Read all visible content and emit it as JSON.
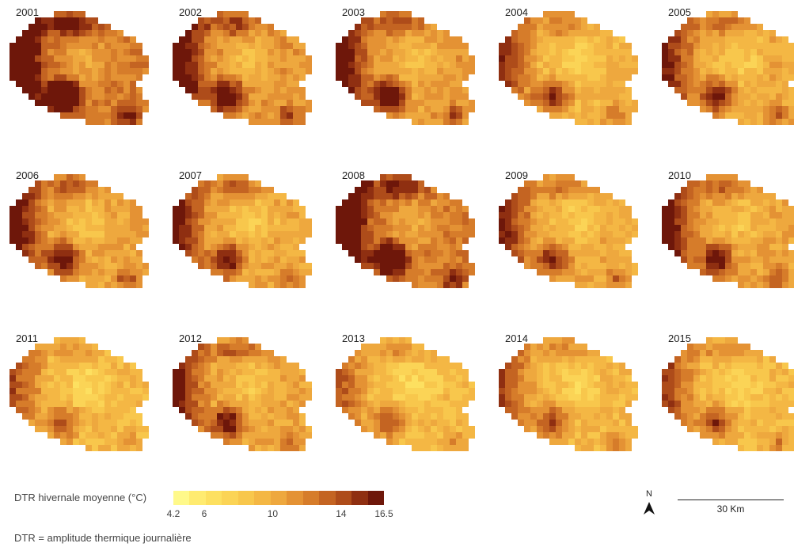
{
  "years": [
    "2001",
    "2002",
    "2003",
    "2004",
    "2005",
    "2006",
    "2007",
    "2008",
    "2009",
    "2010",
    "2011",
    "2012",
    "2013",
    "2014",
    "2015"
  ],
  "intensity": [
    1.0,
    0.72,
    0.68,
    0.42,
    0.5,
    0.62,
    0.55,
    0.95,
    0.48,
    0.6,
    0.32,
    0.56,
    0.28,
    0.36,
    0.36
  ],
  "legend": {
    "title": "DTR hivernale moyenne (°C)",
    "min": 4.2,
    "max": 16.5,
    "ticks": [
      "4.2",
      "6",
      "10",
      "14",
      "16.5"
    ],
    "colors": [
      "#fff98a",
      "#ffeb70",
      "#fde060",
      "#fbd456",
      "#f8c74c",
      "#f4b744",
      "#eea83e",
      "#e49234",
      "#d67c2a",
      "#c46422",
      "#ae4c1a",
      "#8f2f11",
      "#6e170a"
    ]
  },
  "note": "DTR = amplitude thermique journalière",
  "north_label": "N",
  "scale_label": "30 Km"
}
